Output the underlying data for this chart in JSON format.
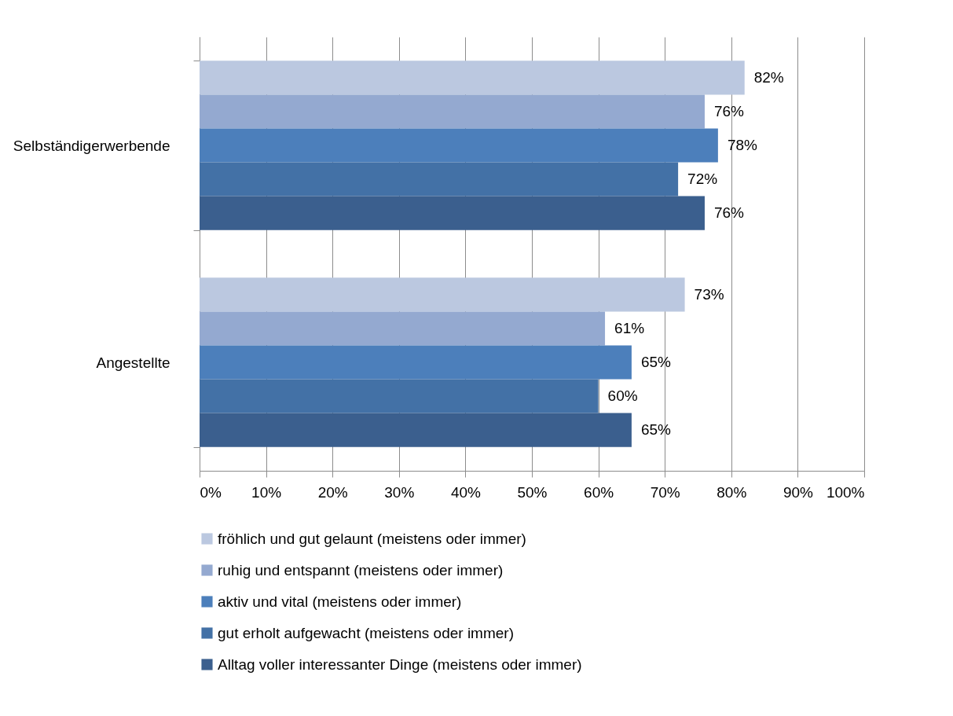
{
  "chart_data": {
    "type": "bar",
    "orientation": "horizontal",
    "categories": [
      "Selbständigerwerbende",
      "Angestellte"
    ],
    "series": [
      {
        "name": "fröhlich und gut gelaunt (meistens oder immer)",
        "color": "#bbc8e0",
        "values": [
          82,
          73
        ],
        "value_labels": [
          "82%",
          "73%"
        ]
      },
      {
        "name": "ruhig und entspannt (meistens oder immer)",
        "color": "#94a9d0",
        "values": [
          76,
          61
        ],
        "value_labels": [
          "76%",
          "61%"
        ]
      },
      {
        "name": "aktiv und vital (meistens oder immer)",
        "color": "#4c7fbb",
        "values": [
          78,
          65
        ],
        "value_labels": [
          "78%",
          "65%"
        ]
      },
      {
        "name": "gut erholt aufgewacht (meistens oder immer)",
        "color": "#4371a6",
        "values": [
          72,
          60
        ],
        "value_labels": [
          "72%",
          "60%"
        ]
      },
      {
        "name": "Alltag voller interessanter Dinge (meistens oder immer)",
        "color": "#3b5f8e",
        "values": [
          76,
          65
        ],
        "value_labels": [
          "76%",
          "65%"
        ]
      }
    ],
    "xlim": [
      0,
      100
    ],
    "xticks": [
      {
        "value": 0,
        "label": "0%"
      },
      {
        "value": 10,
        "label": "10%"
      },
      {
        "value": 20,
        "label": "20%"
      },
      {
        "value": 30,
        "label": "30%"
      },
      {
        "value": 40,
        "label": "40%"
      },
      {
        "value": 50,
        "label": "50%"
      },
      {
        "value": 60,
        "label": "60%"
      },
      {
        "value": 70,
        "label": "70%"
      },
      {
        "value": 80,
        "label": "80%"
      },
      {
        "value": 90,
        "label": "90%"
      },
      {
        "value": 100,
        "label": "100%"
      }
    ],
    "grid": "x",
    "legend": "bottom"
  }
}
